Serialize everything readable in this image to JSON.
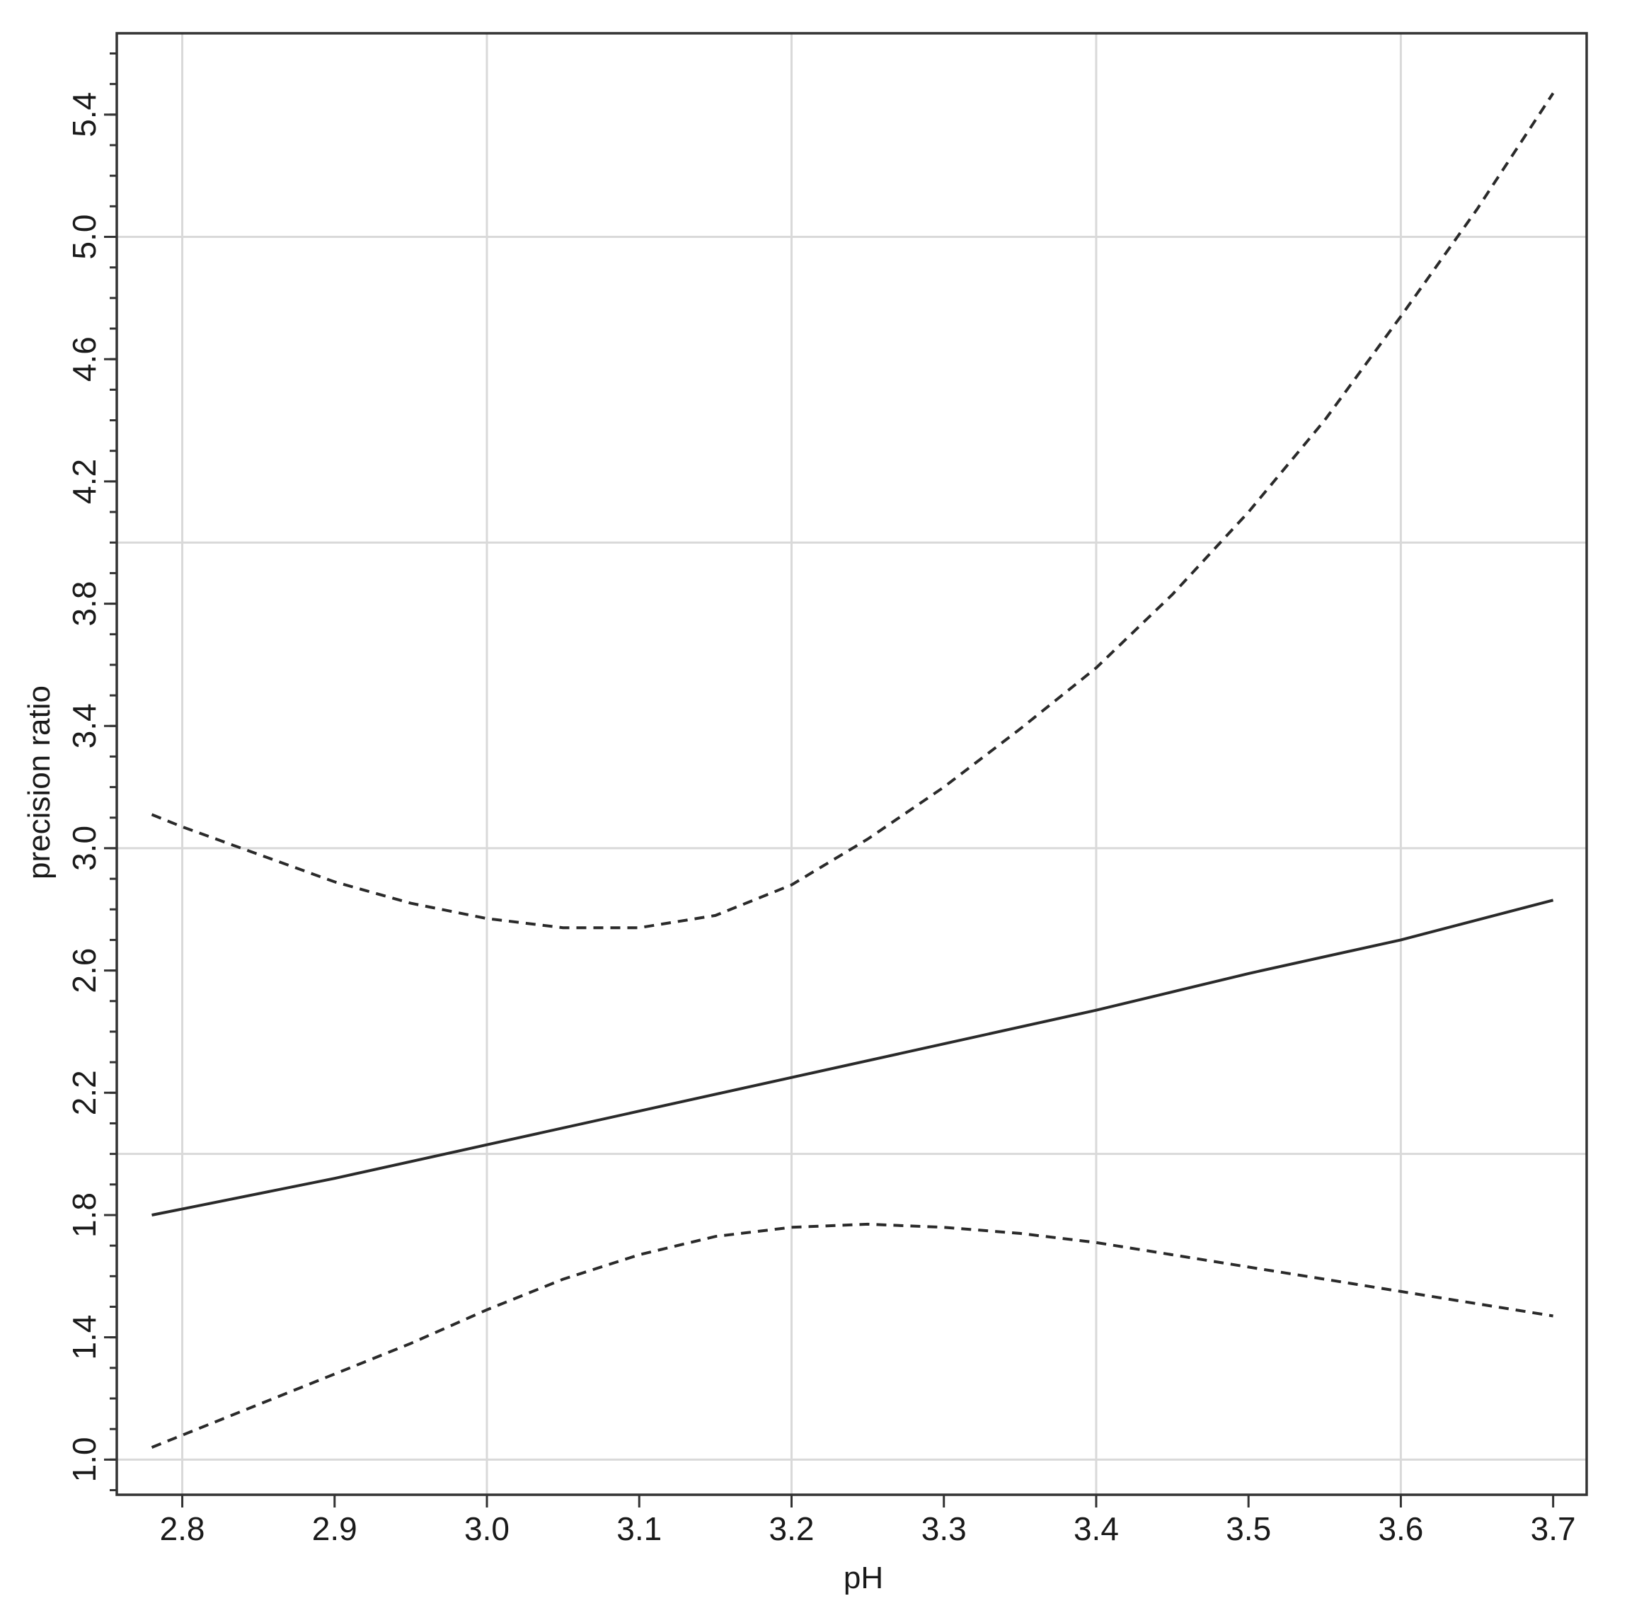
{
  "chart_data": {
    "type": "line",
    "xlabel": "pH",
    "ylabel": "precision ratio",
    "xlim": [
      2.757,
      3.722
    ],
    "ylim": [
      0.885,
      5.666
    ],
    "x_ticks": [
      "2.8",
      "2.9",
      "3.0",
      "3.1",
      "3.2",
      "3.3",
      "3.4",
      "3.5",
      "3.6",
      "3.7"
    ],
    "y_ticks": [
      "1.0",
      "1.4",
      "1.8",
      "2.2",
      "2.6",
      "3.0",
      "3.4",
      "3.8",
      "4.2",
      "4.6",
      "5.0",
      "5.4"
    ],
    "y_minor_step": 0.1,
    "x_grid": [
      2.8,
      3.0,
      3.2,
      3.4,
      3.6
    ],
    "y_grid": [
      1.0,
      2.0,
      3.0,
      4.0,
      5.0
    ],
    "grid": true,
    "legend": "none",
    "series": [
      {
        "style": "solid",
        "x": [
          2.78,
          2.8,
          2.9,
          3.0,
          3.1,
          3.2,
          3.3,
          3.4,
          3.5,
          3.6,
          3.7
        ],
        "y": [
          1.8,
          1.82,
          1.92,
          2.03,
          2.14,
          2.25,
          2.36,
          2.47,
          2.59,
          2.7,
          2.83
        ]
      },
      {
        "style": "dashed",
        "x": [
          2.78,
          2.8,
          2.85,
          2.9,
          2.95,
          3.0,
          3.05,
          3.1,
          3.15,
          3.2,
          3.25,
          3.3,
          3.35,
          3.4,
          3.45,
          3.5,
          3.55,
          3.6,
          3.65,
          3.7
        ],
        "y": [
          3.11,
          3.07,
          2.98,
          2.89,
          2.82,
          2.77,
          2.74,
          2.74,
          2.78,
          2.88,
          3.03,
          3.2,
          3.39,
          3.59,
          3.83,
          4.1,
          4.4,
          4.74,
          5.09,
          5.47
        ]
      },
      {
        "style": "dashed",
        "x": [
          2.78,
          2.8,
          2.85,
          2.9,
          2.95,
          3.0,
          3.05,
          3.1,
          3.15,
          3.2,
          3.25,
          3.3,
          3.35,
          3.4,
          3.45,
          3.5,
          3.55,
          3.6,
          3.65,
          3.7
        ],
        "y": [
          1.04,
          1.08,
          1.18,
          1.28,
          1.38,
          1.49,
          1.59,
          1.67,
          1.73,
          1.76,
          1.77,
          1.76,
          1.74,
          1.71,
          1.67,
          1.63,
          1.59,
          1.55,
          1.51,
          1.47
        ]
      }
    ]
  }
}
